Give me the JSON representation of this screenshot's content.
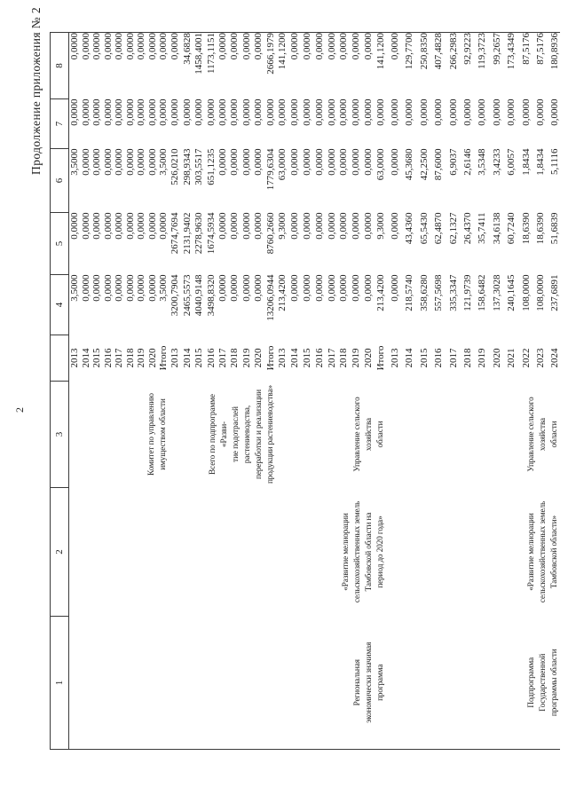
{
  "page": {
    "title": "Продолжение приложения № 2",
    "page_number": "2"
  },
  "table": {
    "header": [
      "1",
      "2",
      "3",
      "",
      "4",
      "5",
      "6",
      "7",
      "8"
    ],
    "blocks": [
      {
        "col1_lines": [],
        "col2_lines": [],
        "col3_lines": [
          "Комитет по управлению",
          "имуществом области"
        ],
        "rows": [
          {
            "year": "2013",
            "values": [
              "3,5000",
              "0,0000",
              "3,5000",
              "0,0000",
              "0,0000"
            ]
          },
          {
            "year": "2014",
            "values": [
              "0,0000",
              "0,0000",
              "0,0000",
              "0,0000",
              "0,0000"
            ]
          },
          {
            "year": "2015",
            "values": [
              "0,0000",
              "0,0000",
              "0,0000",
              "0,0000",
              "0,0000"
            ]
          },
          {
            "year": "2016",
            "values": [
              "0,0000",
              "0,0000",
              "0,0000",
              "0,0000",
              "0,0000"
            ]
          },
          {
            "year": "2017",
            "values": [
              "0,0000",
              "0,0000",
              "0,0000",
              "0,0000",
              "0,0000"
            ]
          },
          {
            "year": "2018",
            "values": [
              "0,0000",
              "0,0000",
              "0,0000",
              "0,0000",
              "0,0000"
            ]
          },
          {
            "year": "2019",
            "values": [
              "0,0000",
              "0,0000",
              "0,0000",
              "0,0000",
              "0,0000"
            ]
          },
          {
            "year": "2020",
            "values": [
              "0,0000",
              "0,0000",
              "0,0000",
              "0,0000",
              "0,0000"
            ]
          },
          {
            "year": "Итого",
            "values": [
              "3,5000",
              "0,0000",
              "3,5000",
              "0,0000",
              "0,0000"
            ]
          }
        ]
      },
      {
        "col1_lines": [],
        "col2_lines": [],
        "col3_lines": [
          "Всего по подпрограмме «Разви-",
          "тие подотраслей растениеводства,",
          "переработки и реализации",
          "продукции растениеводства»"
        ],
        "rows": [
          {
            "year": "2013",
            "values": [
              "3200,7904",
              "2674,7694",
              "526,0210",
              "0,0000",
              "0,0000"
            ]
          },
          {
            "year": "2014",
            "values": [
              "2465,5573",
              "2131,9402",
              "298,9343",
              "0,0000",
              "34,6828"
            ]
          },
          {
            "year": "2015",
            "values": [
              "4040,9148",
              "2278,9630",
              "303,5517",
              "0,0000",
              "1458,4001"
            ]
          },
          {
            "year": "2016",
            "values": [
              "3498,8320",
              "1674,5934",
              "651,1235",
              "0,0000",
              "1173,1151"
            ]
          },
          {
            "year": "2017",
            "values": [
              "0,0000",
              "0,0000",
              "0,0000",
              "0,0000",
              "0,0000"
            ]
          },
          {
            "year": "2018",
            "values": [
              "0,0000",
              "0,0000",
              "0,0000",
              "0,0000",
              "0,0000"
            ]
          },
          {
            "year": "2019",
            "values": [
              "0,0000",
              "0,0000",
              "0,0000",
              "0,0000",
              "0,0000"
            ]
          },
          {
            "year": "2020",
            "values": [
              "0,0000",
              "0,0000",
              "0,0000",
              "0,0000",
              "0,0000"
            ]
          },
          {
            "year": "Итого",
            "values": [
              "13206,0944",
              "8760,2660",
              "1779,6304",
              "0,0000",
              "2666,1979"
            ]
          }
        ]
      },
      {
        "col1_lines": [
          "Региональная",
          "экономически значимая",
          "программа"
        ],
        "col2_lines": [
          "«Развитие мелиорации",
          "сельскохозяйственных земель",
          "Тамбовской области на",
          "период до 2020 года»"
        ],
        "col3_lines": [
          "Управление сельского хозяйства",
          "области"
        ],
        "rows": [
          {
            "year": "2013",
            "values": [
              "213,4200",
              "9,3000",
              "63,0000",
              "0,0000",
              "141,1200"
            ]
          },
          {
            "year": "2014",
            "values": [
              "0,0000",
              "0,0000",
              "0,0000",
              "0,0000",
              "0,0000"
            ]
          },
          {
            "year": "2015",
            "values": [
              "0,0000",
              "0,0000",
              "0,0000",
              "0,0000",
              "0,0000"
            ]
          },
          {
            "year": "2016",
            "values": [
              "0,0000",
              "0,0000",
              "0,0000",
              "0,0000",
              "0,0000"
            ]
          },
          {
            "year": "2017",
            "values": [
              "0,0000",
              "0,0000",
              "0,0000",
              "0,0000",
              "0,0000"
            ]
          },
          {
            "year": "2018",
            "values": [
              "0,0000",
              "0,0000",
              "0,0000",
              "0,0000",
              "0,0000"
            ]
          },
          {
            "year": "2019",
            "values": [
              "0,0000",
              "0,0000",
              "0,0000",
              "0,0000",
              "0,0000"
            ]
          },
          {
            "year": "2020",
            "values": [
              "0,0000",
              "0,0000",
              "0,0000",
              "0,0000",
              "0,0000"
            ]
          },
          {
            "year": "Итого",
            "values": [
              "213,4200",
              "9,3000",
              "63,0000",
              "0,0000",
              "141,1200"
            ]
          }
        ]
      },
      {
        "col1_lines": [
          "Подпрограмма",
          "Государственной",
          "программы области"
        ],
        "col2_lines": [
          "«Развитие мелиорации",
          "сельскохозяйственных земель",
          "Тамбовской области»"
        ],
        "col3_lines": [
          "Управление сельского хозяйства",
          "области"
        ],
        "rows": [
          {
            "year": "2013",
            "values": [
              "0,0000",
              "0,0000",
              "0,0000",
              "0,0000",
              "0,0000"
            ]
          },
          {
            "year": "2014",
            "values": [
              "218,5740",
              "43,4360",
              "45,3680",
              "0,0000",
              "129,7700"
            ]
          },
          {
            "year": "2015",
            "values": [
              "358,6280",
              "65,5430",
              "42,2500",
              "0,0000",
              "250,8350"
            ]
          },
          {
            "year": "2016",
            "values": [
              "557,5698",
              "62,4870",
              "87,6000",
              "0,0000",
              "407,4828"
            ]
          },
          {
            "year": "2017",
            "values": [
              "335,3347",
              "62,1327",
              "6,9037",
              "0,0000",
              "266,2983"
            ]
          },
          {
            "year": "2018",
            "values": [
              "121,9739",
              "26,4370",
              "2,6146",
              "0,0000",
              "92,9223"
            ]
          },
          {
            "year": "2019",
            "values": [
              "158,6482",
              "35,7411",
              "3,5348",
              "0,0000",
              "119,3723"
            ]
          },
          {
            "year": "2020",
            "values": [
              "137,3028",
              "34,6138",
              "3,4233",
              "0,0000",
              "99,2657"
            ]
          },
          {
            "year": "2021",
            "values": [
              "240,1645",
              "60,7240",
              "6,0057",
              "0,0000",
              "173,4349"
            ]
          },
          {
            "year": "2022",
            "values": [
              "108,0000",
              "18,6390",
              "1,8434",
              "0,0000",
              "87,5176"
            ]
          },
          {
            "year": "2023",
            "values": [
              "108,0000",
              "18,6390",
              "1,8434",
              "0,0000",
              "87,5176"
            ]
          },
          {
            "year": "2024",
            "values": [
              "237,6891",
              "51,6839",
              "5,1116",
              "0,0000",
              "180,8936"
            ]
          }
        ]
      }
    ]
  }
}
